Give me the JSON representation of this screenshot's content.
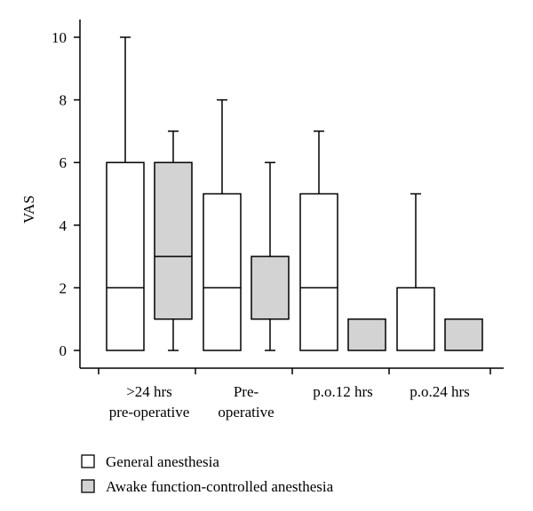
{
  "chart_data": {
    "type": "boxplot",
    "ylabel": "VAS",
    "ylim": [
      0,
      10
    ],
    "yticks": [
      0,
      2,
      4,
      6,
      8,
      10
    ],
    "grid": false,
    "legend_position": "bottom-left",
    "categories": [
      {
        "lines": [
          ">24 hrs",
          "pre-operative"
        ]
      },
      {
        "lines": [
          "Pre-",
          "operative"
        ]
      },
      {
        "lines": [
          "p.o.12 hrs"
        ]
      },
      {
        "lines": [
          "p.o.24 hrs"
        ]
      }
    ],
    "series": [
      {
        "name": "General anesthesia",
        "color": "#ffffff",
        "boxes": [
          {
            "min": 0,
            "q1": 0,
            "median": 2,
            "q3": 6,
            "max": 10
          },
          {
            "min": 0,
            "q1": 0,
            "median": 2,
            "q3": 5,
            "max": 8
          },
          {
            "min": 0,
            "q1": 0,
            "median": 2,
            "q3": 5,
            "max": 7
          },
          {
            "min": 0,
            "q1": 0,
            "median": 0,
            "q3": 2,
            "max": 5
          }
        ]
      },
      {
        "name": "Awake function-controlled anesthesia",
        "color": "#d3d3d3",
        "boxes": [
          {
            "min": 0,
            "q1": 1,
            "median": 3,
            "q3": 6,
            "max": 7
          },
          {
            "min": 0,
            "q1": 1,
            "median": 1,
            "q3": 3,
            "max": 6
          },
          {
            "min": 0,
            "q1": 0,
            "median": 0,
            "q3": 1,
            "max": 1
          },
          {
            "min": 0,
            "q1": 0,
            "median": 0,
            "q3": 1,
            "max": 1
          }
        ]
      }
    ]
  }
}
